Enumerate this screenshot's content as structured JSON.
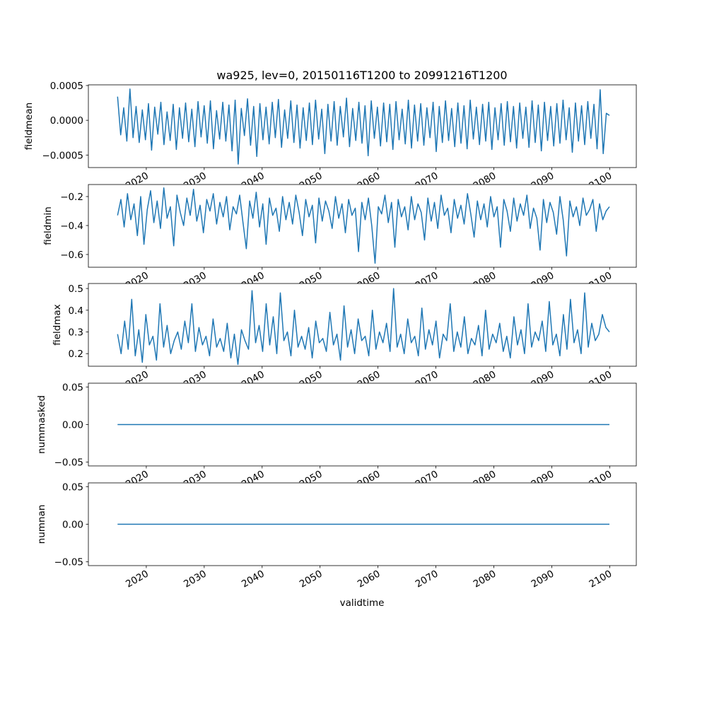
{
  "chart_data": {
    "type": "line",
    "title": "wa925, lev=0, 20150116T1200 to 20991216T1200",
    "xlabel": "validtime",
    "x_range": [
      2015.04,
      2099.96
    ],
    "xlim": [
      2010.0,
      2104.6
    ],
    "x_ticks": [
      "2020",
      "2030",
      "2040",
      "2050",
      "2060",
      "2070",
      "2080",
      "2090",
      "2100"
    ],
    "line_color": "#1f77b4",
    "grid": false,
    "panels": [
      {
        "ylabel": "fieldmean",
        "ylim": [
          -0.00068,
          0.00051
        ],
        "y_ticks": [
          0.0005,
          0.0,
          -0.0005
        ],
        "y_tick_labels": [
          "0.0005",
          "0.0000",
          "−0.0005"
        ],
        "value_scale": 0.0001,
        "values": [
          3.4,
          -2.1,
          1.8,
          -3.0,
          4.5,
          -2.5,
          2.0,
          -3.2,
          1.5,
          -2.8,
          2.4,
          -4.3,
          1.9,
          -2.0,
          2.6,
          -3.5,
          1.2,
          -2.9,
          2.3,
          -4.2,
          1.8,
          -2.6,
          2.5,
          -3.1,
          1.6,
          -3.8,
          2.7,
          -2.4,
          2.1,
          -3.3,
          2.8,
          -4.1,
          1.4,
          -2.7,
          2.6,
          -3.0,
          2.2,
          -4.4,
          2.9,
          -6.3,
          1.7,
          -2.2,
          3.1,
          -3.6,
          2.0,
          -5.2,
          2.4,
          -2.8,
          1.9,
          -3.4,
          2.6,
          -2.5,
          3.0,
          -3.9,
          1.5,
          -2.6,
          2.8,
          -3.2,
          2.2,
          -4.0,
          1.8,
          -2.9,
          2.5,
          -3.5,
          2.9,
          -2.7,
          1.6,
          -4.8,
          2.3,
          -3.0,
          2.7,
          -3.6,
          2.0,
          -2.4,
          3.2,
          -3.8,
          1.7,
          -2.9,
          2.6,
          -3.3,
          2.1,
          -5.1,
          2.8,
          -2.6,
          1.9,
          -3.7,
          2.5,
          -3.1,
          2.3,
          -4.2,
          2.7,
          -2.8,
          1.6,
          -3.4,
          2.9,
          -4.0,
          2.2,
          -3.0,
          2.4,
          -3.6,
          1.8,
          -2.5,
          2.6,
          -4.5,
          2.0,
          -3.2,
          2.8,
          -2.9,
          1.7,
          -3.8,
          2.5,
          -3.3,
          2.1,
          -4.1,
          2.9,
          -2.7,
          1.9,
          -3.5,
          2.3,
          -3.0,
          2.6,
          -4.2,
          1.8,
          -2.8,
          2.4,
          -3.6,
          2.7,
          -3.1,
          2.0,
          -4.0,
          2.5,
          -2.6,
          1.9,
          -3.9,
          2.8,
          -3.2,
          2.2,
          -4.4,
          2.6,
          -2.9,
          2.0,
          -3.7,
          2.4,
          -3.3,
          2.9,
          -2.8,
          1.8,
          -4.6,
          2.5,
          -3.0,
          2.1,
          -3.5,
          2.7,
          -2.6,
          2.3,
          -4.1,
          4.4,
          -4.8,
          1.0,
          0.7
        ]
      },
      {
        "ylabel": "fieldmin",
        "ylim": [
          -0.688,
          -0.117
        ],
        "y_ticks": [
          -0.2,
          -0.4,
          -0.6
        ],
        "y_tick_labels": [
          "−0.2",
          "−0.4",
          "−0.6"
        ],
        "value_scale": 1,
        "values": [
          -0.33,
          -0.22,
          -0.41,
          -0.18,
          -0.36,
          -0.25,
          -0.47,
          -0.2,
          -0.53,
          -0.29,
          -0.16,
          -0.38,
          -0.23,
          -0.42,
          -0.14,
          -0.35,
          -0.27,
          -0.54,
          -0.19,
          -0.31,
          -0.4,
          -0.21,
          -0.33,
          -0.15,
          -0.37,
          -0.26,
          -0.45,
          -0.22,
          -0.3,
          -0.18,
          -0.39,
          -0.24,
          -0.34,
          -0.2,
          -0.43,
          -0.27,
          -0.32,
          -0.19,
          -0.38,
          -0.56,
          -0.23,
          -0.35,
          -0.17,
          -0.41,
          -0.25,
          -0.53,
          -0.21,
          -0.33,
          -0.28,
          -0.44,
          -0.2,
          -0.36,
          -0.24,
          -0.39,
          -0.19,
          -0.31,
          -0.47,
          -0.22,
          -0.34,
          -0.26,
          -0.52,
          -0.21,
          -0.37,
          -0.23,
          -0.3,
          -0.42,
          -0.2,
          -0.35,
          -0.25,
          -0.45,
          -0.22,
          -0.33,
          -0.28,
          -0.58,
          -0.24,
          -0.36,
          -0.21,
          -0.4,
          -0.66,
          -0.27,
          -0.32,
          -0.19,
          -0.38,
          -0.24,
          -0.55,
          -0.22,
          -0.34,
          -0.27,
          -0.43,
          -0.2,
          -0.36,
          -0.25,
          -0.31,
          -0.5,
          -0.21,
          -0.37,
          -0.24,
          -0.42,
          -0.19,
          -0.33,
          -0.28,
          -0.45,
          -0.22,
          -0.35,
          -0.26,
          -0.39,
          -0.18,
          -0.32,
          -0.48,
          -0.23,
          -0.36,
          -0.25,
          -0.41,
          -0.2,
          -0.34,
          -0.27,
          -0.55,
          -0.22,
          -0.3,
          -0.44,
          -0.21,
          -0.37,
          -0.25,
          -0.33,
          -0.19,
          -0.42,
          -0.28,
          -0.35,
          -0.57,
          -0.22,
          -0.38,
          -0.24,
          -0.31,
          -0.46,
          -0.2,
          -0.36,
          -0.61,
          -0.23,
          -0.34,
          -0.27,
          -0.4,
          -0.21,
          -0.33,
          -0.29,
          -0.22,
          -0.44,
          -0.25,
          -0.36,
          -0.3,
          -0.27
        ]
      },
      {
        "ylabel": "fieldmax",
        "ylim": [
          0.142,
          0.523
        ],
        "y_ticks": [
          0.5,
          0.4,
          0.3,
          0.2
        ],
        "y_tick_labels": [
          "0.5",
          "0.4",
          "0.3",
          "0.2"
        ],
        "value_scale": 1,
        "values": [
          0.29,
          0.2,
          0.35,
          0.22,
          0.45,
          0.19,
          0.31,
          0.16,
          0.38,
          0.24,
          0.28,
          0.17,
          0.43,
          0.23,
          0.33,
          0.2,
          0.26,
          0.3,
          0.22,
          0.35,
          0.25,
          0.43,
          0.21,
          0.32,
          0.24,
          0.28,
          0.19,
          0.36,
          0.23,
          0.27,
          0.21,
          0.34,
          0.18,
          0.29,
          0.15,
          0.31,
          0.26,
          0.22,
          0.49,
          0.25,
          0.33,
          0.21,
          0.43,
          0.24,
          0.37,
          0.2,
          0.48,
          0.26,
          0.3,
          0.19,
          0.4,
          0.23,
          0.28,
          0.22,
          0.32,
          0.18,
          0.35,
          0.25,
          0.27,
          0.21,
          0.39,
          0.24,
          0.29,
          0.17,
          0.42,
          0.23,
          0.31,
          0.2,
          0.36,
          0.26,
          0.28,
          0.19,
          0.4,
          0.22,
          0.3,
          0.25,
          0.34,
          0.21,
          0.5,
          0.23,
          0.29,
          0.2,
          0.36,
          0.25,
          0.28,
          0.19,
          0.41,
          0.22,
          0.31,
          0.24,
          0.35,
          0.18,
          0.29,
          0.26,
          0.43,
          0.21,
          0.3,
          0.23,
          0.37,
          0.2,
          0.27,
          0.24,
          0.33,
          0.19,
          0.4,
          0.22,
          0.29,
          0.25,
          0.34,
          0.21,
          0.28,
          0.18,
          0.37,
          0.24,
          0.31,
          0.2,
          0.43,
          0.23,
          0.3,
          0.26,
          0.35,
          0.21,
          0.44,
          0.24,
          0.29,
          0.19,
          0.38,
          0.22,
          0.45,
          0.25,
          0.31,
          0.2,
          0.48,
          0.23,
          0.34,
          0.26,
          0.29,
          0.38,
          0.32,
          0.3
        ]
      },
      {
        "ylabel": "nummasked",
        "ylim": [
          -0.055,
          0.055
        ],
        "y_ticks": [
          0.05,
          0.0,
          -0.05
        ],
        "y_tick_labels": [
          "0.05",
          "0.00",
          "−0.05"
        ],
        "value_scale": 1,
        "values": [
          0,
          0
        ]
      },
      {
        "ylabel": "numnan",
        "ylim": [
          -0.055,
          0.055
        ],
        "y_ticks": [
          0.05,
          0.0,
          -0.05
        ],
        "y_tick_labels": [
          "0.05",
          "0.00",
          "−0.05"
        ],
        "value_scale": 1,
        "values": [
          0,
          0
        ]
      }
    ]
  }
}
